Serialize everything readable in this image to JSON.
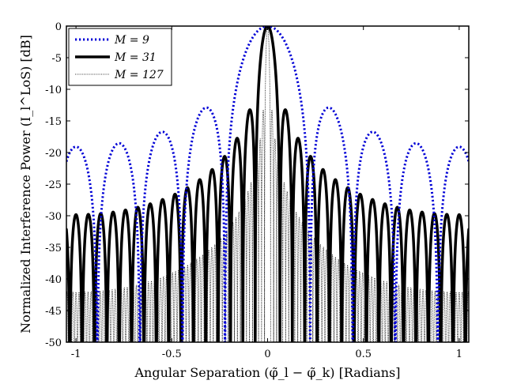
{
  "chart_data": {
    "type": "line",
    "title": "",
    "xlabel": "Angular Separation (φ̃_l − φ̃_k) [Radians]",
    "ylabel": "Normalized Interference Power (I_l^LoS) [dB]",
    "xlim": [
      -1.05,
      1.05
    ],
    "ylim": [
      -50,
      0
    ],
    "x_ticks": [
      -1,
      -0.5,
      0,
      0.5,
      1
    ],
    "x_tick_labels": [
      "-1",
      "-0.5",
      "0",
      "0.5",
      "1"
    ],
    "y_ticks": [
      0,
      -5,
      -10,
      -15,
      -20,
      -25,
      -30,
      -35,
      -40,
      -45,
      -50
    ],
    "y_tick_labels": [
      "0",
      "-5",
      "-10",
      "-15",
      "-20",
      "-25",
      "-30",
      "-35",
      "-40",
      "-45",
      "-50"
    ],
    "grid": false,
    "legend_position": "top-left",
    "series": [
      {
        "name": "M = 9",
        "legend_label": "M = 9",
        "M": 9,
        "color": "#0000d6",
        "style": "dotted",
        "lead_term": "M ="
      },
      {
        "name": "M = 31",
        "legend_label": "M = 31",
        "M": 31,
        "color": "#000000",
        "style": "solid",
        "lead_term": "M ="
      },
      {
        "name": "M = 127",
        "legend_label": "M = 127",
        "M": 127,
        "color": "#000000",
        "style": "thin-dotted",
        "lead_term": "M ="
      }
    ],
    "model": "array factor |sin(M·π·x/2) / (M·sin(π·x/2))|² in dB, floored at -50"
  }
}
